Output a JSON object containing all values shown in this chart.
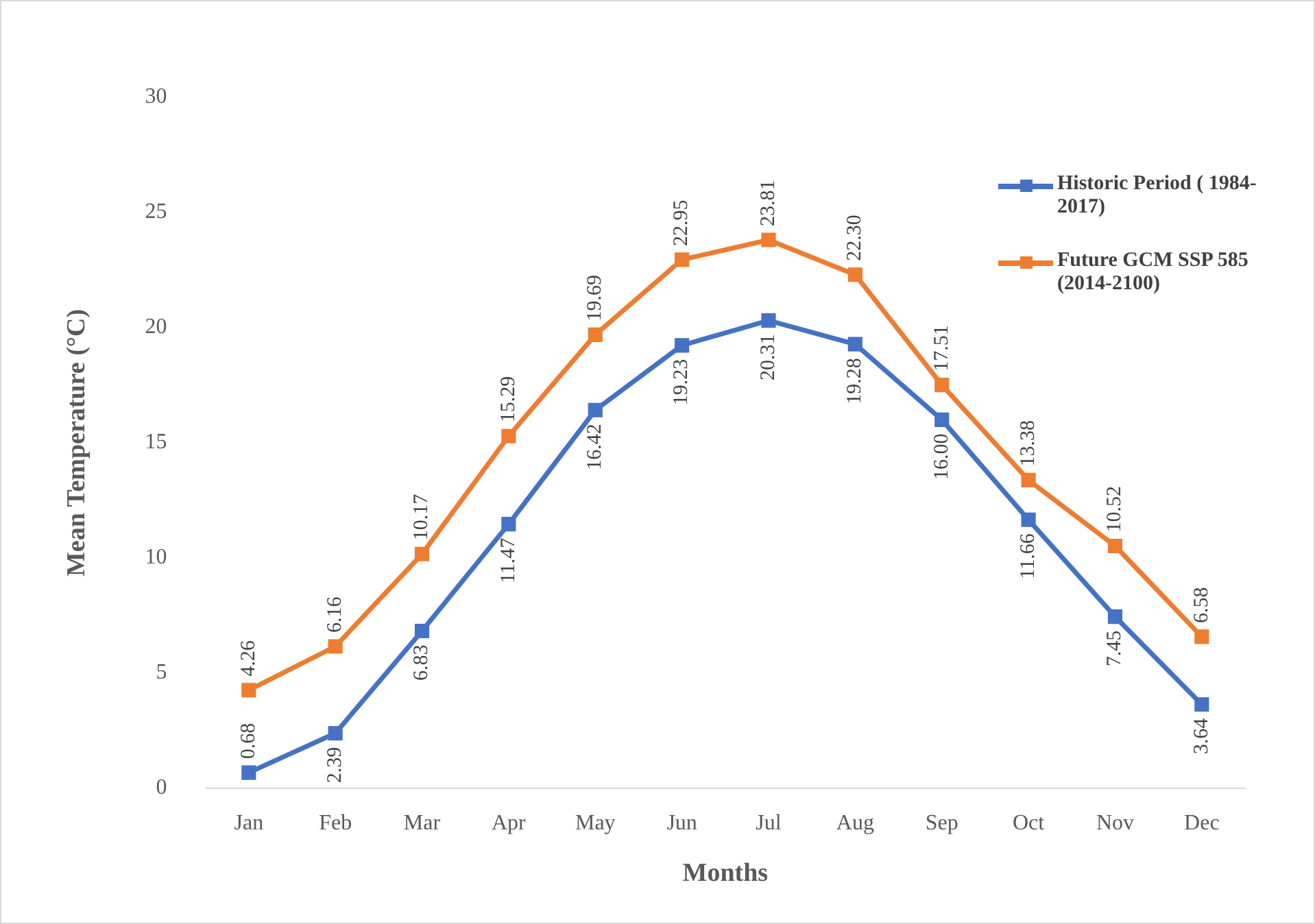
{
  "chart_data": {
    "type": "line",
    "xlabel": "Months",
    "ylabel": "Mean Temperature (°C)",
    "categories": [
      "Jan",
      "Feb",
      "Mar",
      "Apr",
      "May",
      "Jun",
      "Jul",
      "Aug",
      "Sep",
      "Oct",
      "Nov",
      "Dec"
    ],
    "series": [
      {
        "name": "Historic Period ( 1984-2017)",
        "color": "#4472c4",
        "values": [
          0.68,
          2.39,
          6.83,
          11.47,
          16.42,
          19.23,
          20.31,
          19.28,
          16.0,
          11.66,
          7.45,
          3.64
        ],
        "value_labels": [
          "0.68",
          "2.39",
          "6.83",
          "11.47",
          "16.42",
          "19.23",
          "20.31",
          "19.28",
          "16.00",
          "11.66",
          "7.45",
          "3.64"
        ]
      },
      {
        "name": "Future GCM SSP 585 (2014-2100)",
        "color": "#ed7d31",
        "values": [
          4.26,
          6.16,
          10.17,
          15.29,
          19.69,
          22.95,
          23.81,
          22.3,
          17.51,
          13.38,
          10.52,
          6.58
        ],
        "value_labels": [
          "4.26",
          "6.16",
          "10.17",
          "15.29",
          "19.69",
          "22.95",
          "23.81",
          "22.30",
          "17.51",
          "13.38",
          "10.52",
          "6.58"
        ]
      }
    ],
    "ylim": [
      0,
      30
    ],
    "yticks": [
      0,
      5,
      10,
      15,
      20,
      25,
      30
    ],
    "grid": false,
    "legend": "top right",
    "marker": "square",
    "line_style": "solid"
  }
}
